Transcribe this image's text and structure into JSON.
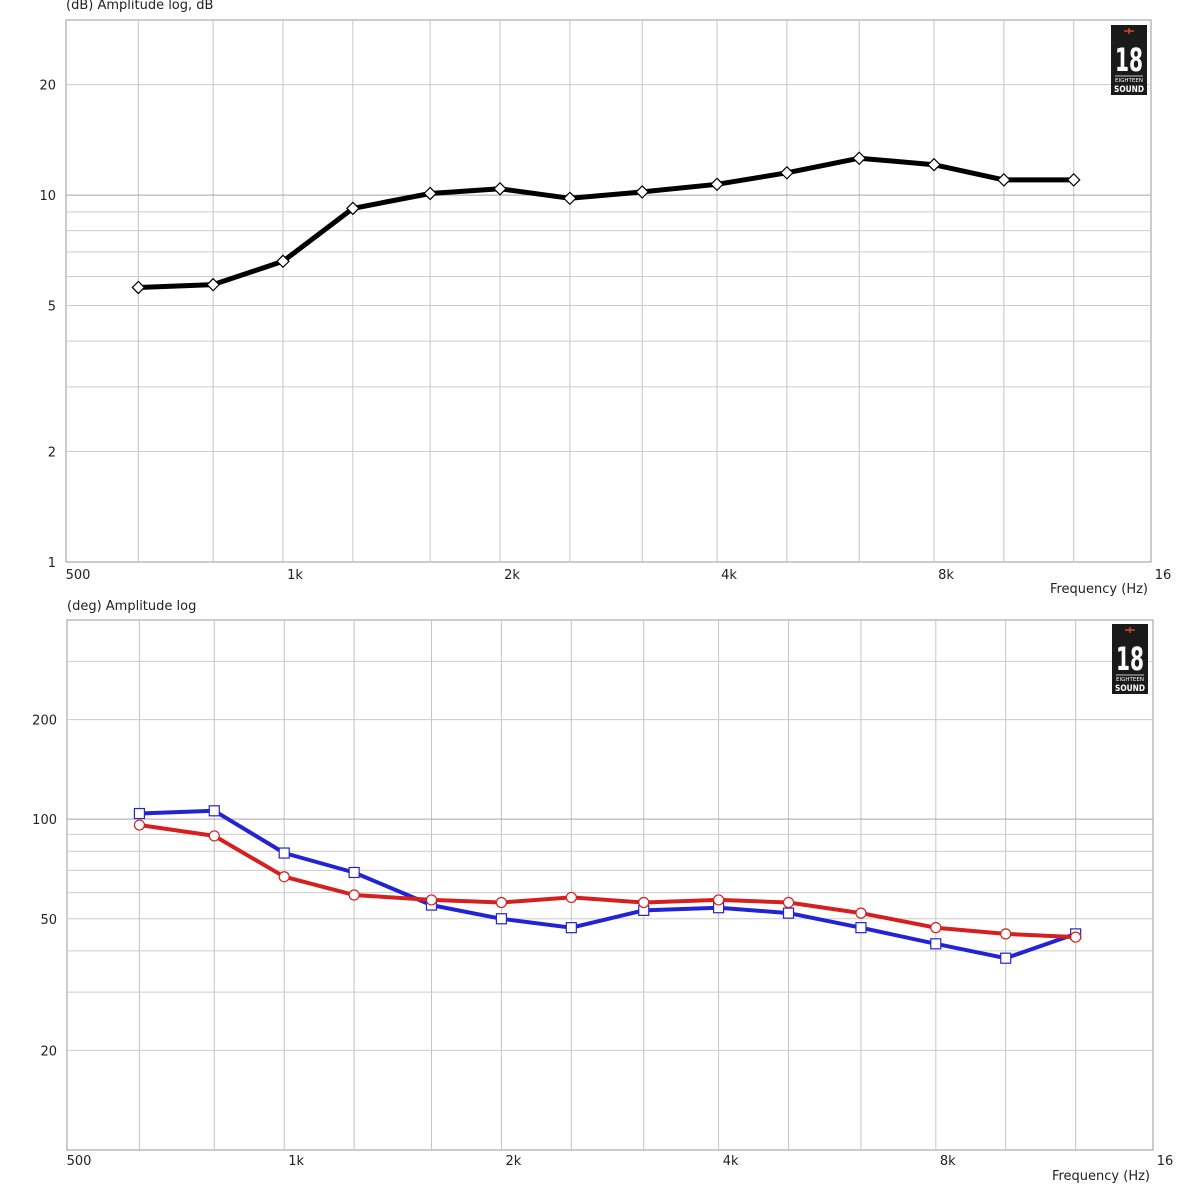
{
  "chart_data": [
    {
      "type": "line",
      "ylabel": "(dB)  Amplitude log, dB",
      "xlabel": "Frequency  (Hz)",
      "xscale": "log",
      "yscale": "log",
      "xlim": [
        500,
        16000
      ],
      "ylim": [
        1,
        30
      ],
      "x_tick_labels": [
        "500",
        "1k",
        "2k",
        "4k",
        "8k",
        "16"
      ],
      "y_tick_labels": [
        "1",
        "2",
        "5",
        "10",
        "20"
      ],
      "grid": true,
      "logo": {
        "text": "18",
        "subtext": "EIGHTEEN SOUND"
      },
      "x": [
        630,
        800,
        1000,
        1250,
        1600,
        2000,
        2500,
        3150,
        4000,
        5000,
        6300,
        8000,
        10000,
        12500
      ],
      "series": [
        {
          "color": "#000000",
          "marker": "diamond",
          "values": [
            5.6,
            5.7,
            6.6,
            9.2,
            10.1,
            10.4,
            9.8,
            10.2,
            10.7,
            11.5,
            12.6,
            12.1,
            11.0,
            11.0
          ]
        }
      ]
    },
    {
      "type": "line",
      "ylabel": "(deg)  Amplitude log",
      "xlabel": "Frequency  (Hz)",
      "xscale": "log",
      "yscale": "log",
      "xlim": [
        500,
        16000
      ],
      "ylim": [
        10,
        400
      ],
      "x_tick_labels": [
        "500",
        "1k",
        "2k",
        "4k",
        "8k",
        "16"
      ],
      "y_tick_labels": [
        "20",
        "50",
        "100",
        "200"
      ],
      "grid": true,
      "logo": {
        "text": "18",
        "subtext": "EIGHTEEN SOUND"
      },
      "x": [
        630,
        800,
        1000,
        1250,
        1600,
        2000,
        2500,
        3150,
        4000,
        5000,
        6300,
        8000,
        10000,
        12500
      ],
      "series": [
        {
          "color": "#2323d6",
          "marker": "square",
          "values": [
            104,
            106,
            79,
            69,
            55,
            50,
            47,
            53,
            54,
            52,
            47,
            42,
            38,
            45
          ]
        },
        {
          "color": "#d62020",
          "marker": "circle",
          "values": [
            96,
            89,
            67,
            59,
            57,
            56,
            58,
            56,
            57,
            56,
            52,
            47,
            45,
            44
          ]
        }
      ]
    }
  ]
}
